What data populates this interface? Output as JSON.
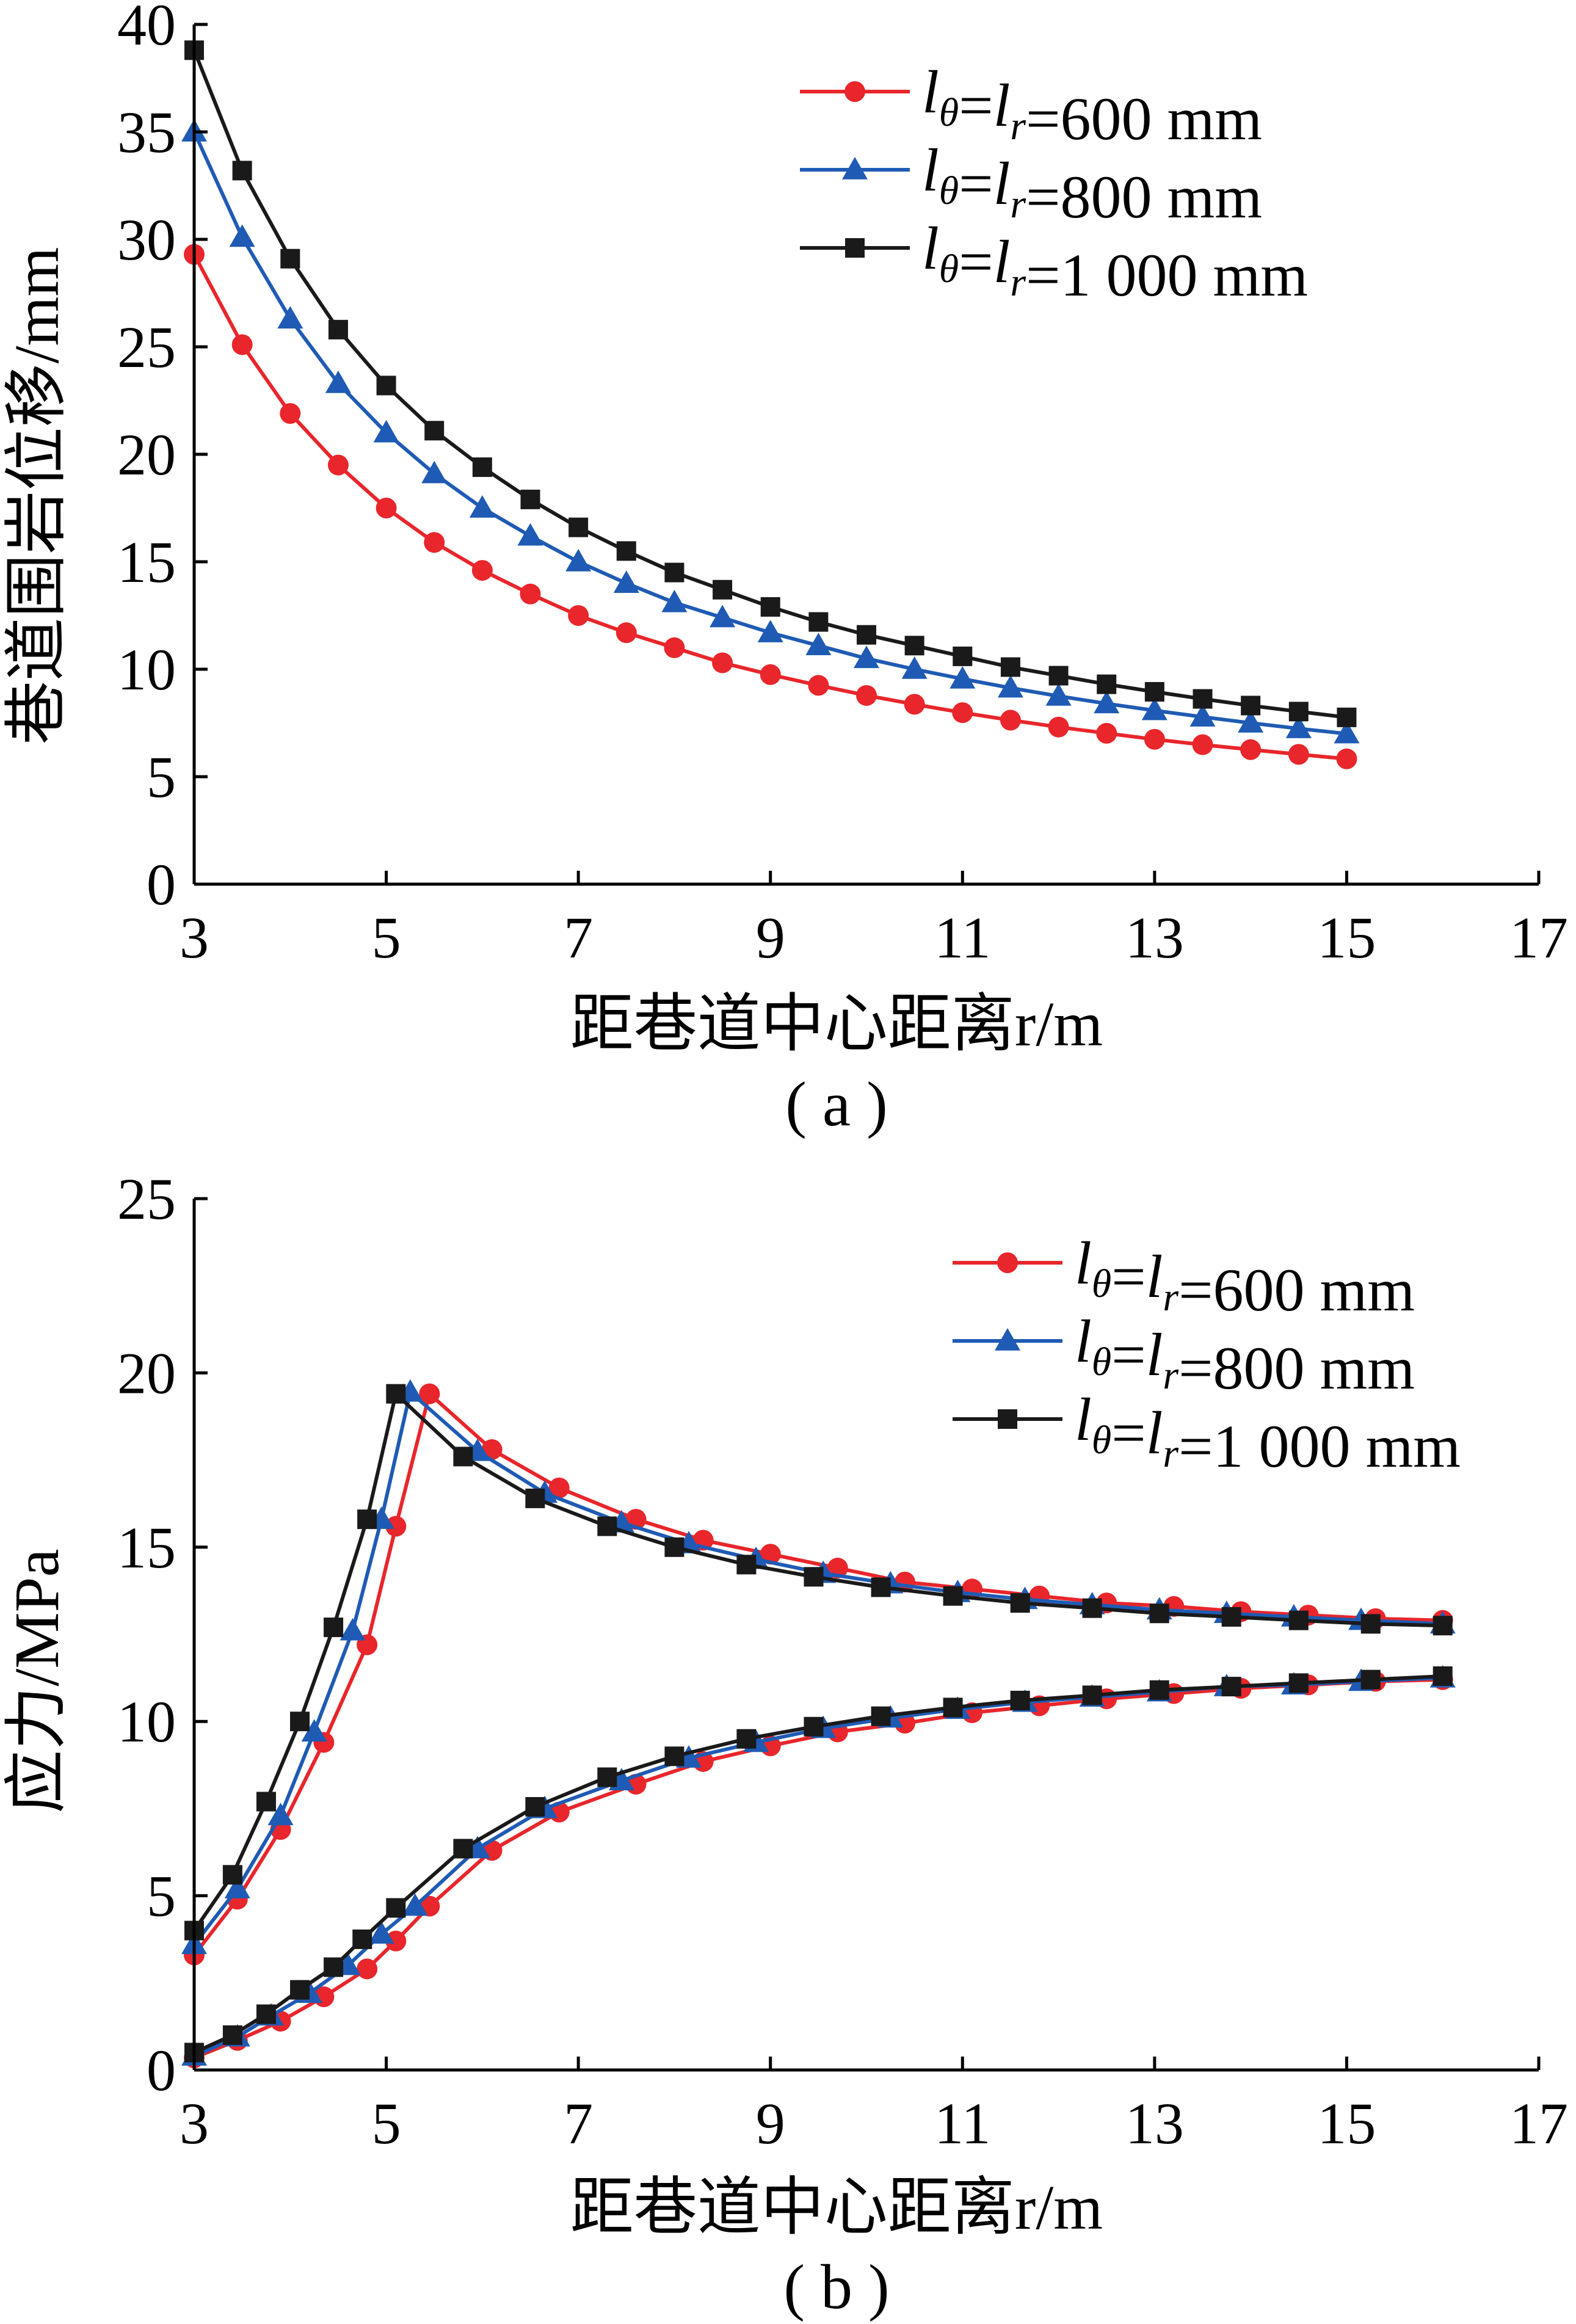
{
  "chart_data": [
    {
      "type": "line",
      "caption": "( a )",
      "xlabel": "距巷道中心距离r/m",
      "ylabel": "巷道围岩位移/mm",
      "xlim": [
        3,
        17
      ],
      "ylim": [
        0,
        40
      ],
      "xticks": [
        "3",
        "5",
        "7",
        "9",
        "11",
        "13",
        "15",
        "17"
      ],
      "yticks": [
        "0",
        "5",
        "10",
        "15",
        "20",
        "25",
        "30",
        "35",
        "40"
      ],
      "legend_position": "top-right",
      "grid": false,
      "series": [
        {
          "name": "lθ=lr=600 mm",
          "color": "#e8262b",
          "marker": "circle",
          "x": [
            3,
            3.5,
            4,
            4.5,
            5,
            5.5,
            6,
            6.5,
            7,
            7.5,
            8,
            8.5,
            9,
            9.5,
            10,
            10.5,
            11,
            11.5,
            12,
            12.5,
            13,
            13.5,
            14,
            14.5,
            15
          ],
          "values": [
            29.3,
            25.1,
            21.9,
            19.5,
            17.5,
            15.9,
            14.6,
            13.5,
            12.5,
            11.7,
            11.0,
            10.3,
            9.75,
            9.25,
            8.78,
            8.37,
            7.98,
            7.63,
            7.31,
            7.02,
            6.74,
            6.49,
            6.26,
            6.04,
            5.83
          ]
        },
        {
          "name": "lθ=lr=800 mm",
          "color": "#1f5bb4",
          "marker": "triangle",
          "x": [
            3,
            3.5,
            4,
            4.5,
            5,
            5.5,
            6,
            6.5,
            7,
            7.5,
            8,
            8.5,
            9,
            9.5,
            10,
            10.5,
            11,
            11.5,
            12,
            12.5,
            13,
            13.5,
            14,
            14.5,
            15
          ],
          "values": [
            35.0,
            30.1,
            26.3,
            23.3,
            21.0,
            19.1,
            17.5,
            16.2,
            15.0,
            14.0,
            13.1,
            12.4,
            11.7,
            11.1,
            10.5,
            10.0,
            9.55,
            9.13,
            8.75,
            8.4,
            8.08,
            7.78,
            7.5,
            7.24,
            7.0
          ]
        },
        {
          "name": "lθ=lr=1 000 mm",
          "color": "#1a1a1a",
          "marker": "square",
          "x": [
            3,
            3.5,
            4,
            4.5,
            5,
            5.5,
            6,
            6.5,
            7,
            7.5,
            8,
            8.5,
            9,
            9.5,
            10,
            10.5,
            11,
            11.5,
            12,
            12.5,
            13,
            13.5,
            14,
            14.5,
            15
          ],
          "values": [
            38.8,
            33.2,
            29.1,
            25.8,
            23.2,
            21.1,
            19.4,
            17.9,
            16.6,
            15.5,
            14.5,
            13.7,
            12.9,
            12.2,
            11.6,
            11.1,
            10.6,
            10.1,
            9.7,
            9.3,
            8.95,
            8.62,
            8.31,
            8.03,
            7.76
          ]
        }
      ]
    },
    {
      "type": "line",
      "caption": "( b )",
      "xlabel": "距巷道中心距离r/m",
      "ylabel": "应力/MPa",
      "xlim": [
        3,
        17
      ],
      "ylim": [
        0,
        25
      ],
      "xticks": [
        "3",
        "5",
        "7",
        "9",
        "11",
        "13",
        "15",
        "17"
      ],
      "yticks": [
        "0",
        "5",
        "10",
        "15",
        "20",
        "25"
      ],
      "legend_position": "top-right",
      "grid": false,
      "series": [
        {
          "name": "lθ=lr=600 mm",
          "color": "#e8262b",
          "marker": "circle",
          "x": [
            3,
            3.45,
            3.9,
            4.35,
            4.8,
            5.1,
            5.45,
            6.1,
            6.8,
            7.6,
            8.3,
            9.0,
            9.7,
            10.4,
            11.1,
            11.8,
            12.5,
            13.2,
            13.9,
            14.6,
            15.3,
            16.0
          ],
          "values": [
            3.3,
            4.9,
            6.9,
            9.4,
            12.2,
            15.6,
            19.4,
            17.8,
            16.7,
            15.8,
            15.2,
            14.8,
            14.4,
            14.0,
            13.8,
            13.6,
            13.4,
            13.3,
            13.15,
            13.05,
            12.95,
            12.9
          ],
          "lower": {
            "x": [
              3,
              3.45,
              3.9,
              4.35,
              4.8,
              5.1,
              5.45,
              6.1,
              6.8,
              7.6,
              8.3,
              9.0,
              9.7,
              10.4,
              11.1,
              11.8,
              12.5,
              13.2,
              13.9,
              14.6,
              15.3,
              16.0
            ],
            "values": [
              0.35,
              0.85,
              1.4,
              2.1,
              2.9,
              3.7,
              4.7,
              6.3,
              7.4,
              8.2,
              8.85,
              9.3,
              9.7,
              9.95,
              10.25,
              10.45,
              10.65,
              10.8,
              10.95,
              11.05,
              11.15,
              11.2
            ]
          }
        },
        {
          "name": "lθ=lr=800 mm",
          "color": "#1f5bb4",
          "marker": "triangle",
          "x": [
            3,
            3.45,
            3.9,
            4.25,
            4.65,
            4.95,
            5.25,
            5.95,
            6.65,
            7.45,
            8.15,
            8.85,
            9.55,
            10.25,
            10.95,
            11.65,
            12.35,
            13.05,
            13.75,
            14.45,
            15.15,
            16.0
          ],
          "values": [
            3.6,
            5.2,
            7.3,
            9.7,
            12.6,
            15.8,
            19.45,
            17.75,
            16.55,
            15.7,
            15.1,
            14.65,
            14.25,
            13.95,
            13.7,
            13.5,
            13.35,
            13.2,
            13.1,
            13.0,
            12.9,
            12.8
          ],
          "lower": {
            "x": [
              3,
              3.45,
              3.8,
              4.2,
              4.6,
              4.95,
              5.3,
              5.95,
              6.65,
              7.45,
              8.15,
              8.85,
              9.55,
              10.25,
              10.95,
              11.65,
              12.35,
              13.05,
              13.75,
              14.45,
              15.15,
              16.0
            ],
            "values": [
              0.4,
              0.95,
              1.55,
              2.2,
              3.0,
              3.9,
              4.7,
              6.35,
              7.5,
              8.3,
              8.95,
              9.4,
              9.8,
              10.1,
              10.35,
              10.55,
              10.7,
              10.85,
              11.0,
              11.05,
              11.15,
              11.25
            ]
          }
        },
        {
          "name": "lθ=lr=1 000 mm",
          "color": "#1a1a1a",
          "marker": "square",
          "x": [
            3,
            3.4,
            3.75,
            4.1,
            4.45,
            4.8,
            5.1,
            5.8,
            6.55,
            7.3,
            8.0,
            8.75,
            9.45,
            10.15,
            10.9,
            11.6,
            12.35,
            13.05,
            13.8,
            14.5,
            15.25,
            16.0
          ],
          "values": [
            4.0,
            5.6,
            7.7,
            10.0,
            12.7,
            15.8,
            19.4,
            17.6,
            16.4,
            15.6,
            15.0,
            14.5,
            14.15,
            13.85,
            13.6,
            13.4,
            13.25,
            13.1,
            13.0,
            12.9,
            12.8,
            12.75
          ],
          "lower": {
            "x": [
              3,
              3.4,
              3.75,
              4.1,
              4.45,
              4.75,
              5.1,
              5.8,
              6.55,
              7.3,
              8.0,
              8.75,
              9.45,
              10.15,
              10.9,
              11.6,
              12.35,
              13.05,
              13.8,
              14.5,
              15.25,
              16.0
            ],
            "values": [
              0.5,
              1.0,
              1.6,
              2.3,
              2.95,
              3.75,
              4.65,
              6.35,
              7.55,
              8.4,
              9.0,
              9.5,
              9.85,
              10.15,
              10.4,
              10.6,
              10.75,
              10.9,
              11.0,
              11.1,
              11.2,
              11.3
            ]
          }
        }
      ]
    }
  ],
  "legend_parts": {
    "l": "l",
    "theta": "θ",
    "r": "r",
    "eq": "=",
    "values": [
      "600 mm",
      "800 mm",
      "1 000 mm"
    ]
  }
}
